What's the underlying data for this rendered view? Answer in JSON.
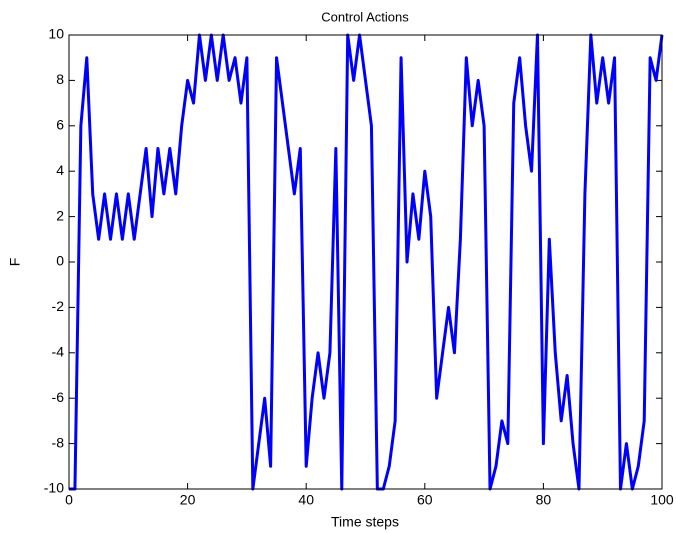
{
  "chart_data": {
    "type": "line",
    "title": "Control Actions",
    "x_label": "Time steps",
    "y_label": "F",
    "x": [
      0,
      1,
      2,
      3,
      4,
      5,
      6,
      7,
      8,
      9,
      10,
      11,
      12,
      13,
      14,
      15,
      16,
      17,
      18,
      19,
      20,
      21,
      22,
      23,
      24,
      25,
      26,
      27,
      28,
      29,
      30,
      31,
      32,
      33,
      34,
      35,
      36,
      37,
      38,
      39,
      40,
      41,
      42,
      43,
      44,
      45,
      46,
      47,
      48,
      49,
      50,
      51,
      52,
      53,
      54,
      55,
      56,
      57,
      58,
      59,
      60,
      61,
      62,
      63,
      64,
      65,
      66,
      67,
      68,
      69,
      70,
      71,
      72,
      73,
      74,
      75,
      76,
      77,
      78,
      79,
      80,
      81,
      82,
      83,
      84,
      85,
      86,
      87,
      88,
      89,
      90,
      91,
      92,
      93,
      94,
      95,
      96,
      97,
      98,
      99,
      100
    ],
    "series": [
      {
        "name": "F",
        "color": "#0000ff",
        "values": [
          -10,
          -10,
          6,
          9,
          3,
          1,
          3,
          1,
          3,
          1,
          3,
          1,
          3,
          5,
          2,
          5,
          3,
          5,
          3,
          6,
          8,
          7,
          10,
          8,
          10,
          8,
          10,
          8,
          9,
          7,
          9,
          -10,
          -8,
          -6,
          -9,
          9,
          7,
          5,
          3,
          5,
          -9,
          -6,
          -4,
          -6,
          -4,
          5,
          -10,
          10,
          8,
          10,
          8,
          6,
          -10,
          -10,
          -9,
          -7,
          9,
          0,
          3,
          1,
          4,
          2,
          -6,
          -4,
          -2,
          -4,
          1,
          9,
          6,
          8,
          6,
          -10,
          -9,
          -7,
          -8,
          7,
          9,
          6,
          4,
          10,
          -8,
          1,
          -4,
          -7,
          -5,
          -8,
          -10,
          3,
          10,
          7,
          9,
          7,
          9,
          -10,
          -8,
          -10,
          -9,
          -7,
          9,
          8,
          10
        ]
      }
    ],
    "xlim": [
      0,
      100
    ],
    "ylim": [
      -10,
      10
    ],
    "xticks": [
      0,
      20,
      40,
      60,
      80,
      100
    ],
    "yticks": [
      -10,
      -8,
      -6,
      -4,
      -2,
      0,
      2,
      4,
      6,
      8,
      10
    ],
    "grid": false
  }
}
